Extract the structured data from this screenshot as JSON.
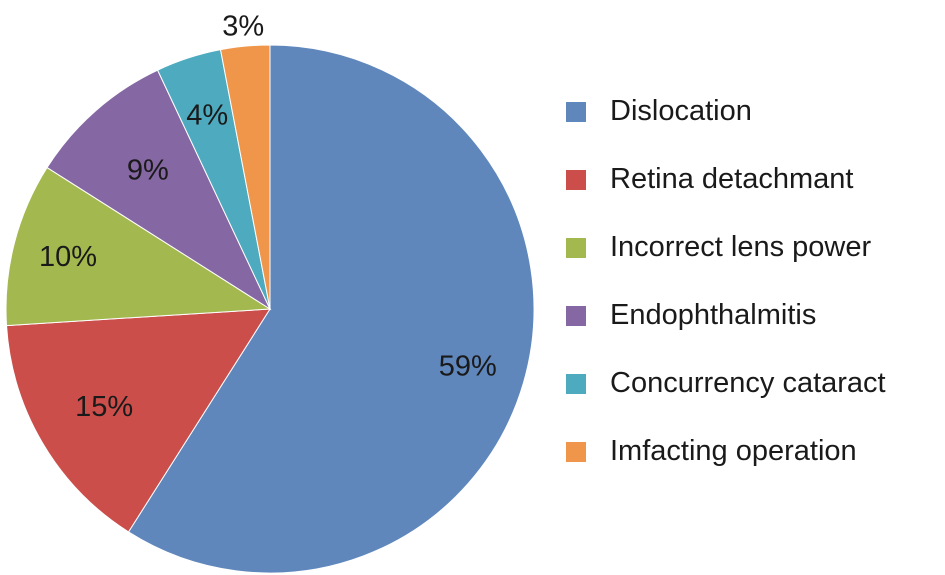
{
  "chart_data": {
    "type": "pie",
    "title": "",
    "start_angle_deg": 0,
    "direction": "clockwise",
    "legend_position": "right",
    "slices": [
      {
        "label": "Dislocation",
        "value": 59,
        "display": "59%",
        "color": "#5f87bc"
      },
      {
        "label": "Retina detachmant",
        "value": 15,
        "display": "15%",
        "color": "#cb4e4b"
      },
      {
        "label": "Incorrect lens power",
        "value": 10,
        "display": "10%",
        "color": "#a3b950"
      },
      {
        "label": "Endophthalmitis",
        "value": 9,
        "display": "9%",
        "color": "#8567a3"
      },
      {
        "label": "Concurrency cataract",
        "value": 4,
        "display": "4%",
        "color": "#4eabbf"
      },
      {
        "label": "Imfacting operation",
        "value": 3,
        "display": "3%",
        "color": "#f0964a"
      }
    ]
  }
}
